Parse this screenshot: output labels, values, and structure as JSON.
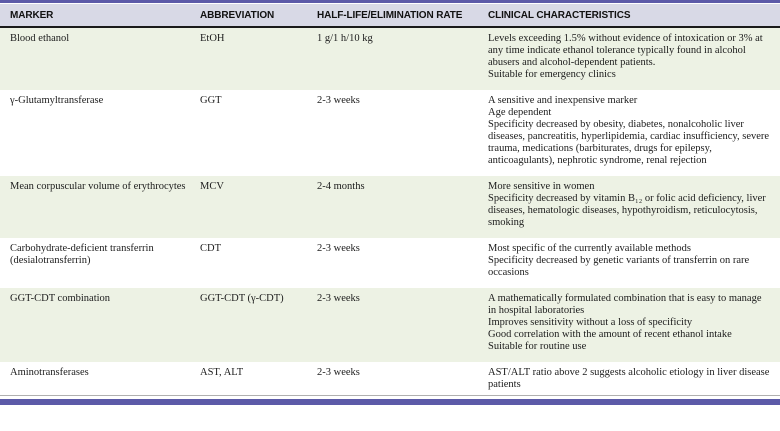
{
  "theme": {
    "accent_bar_color": "#5c5aa8",
    "header_bg": "#d8d9e6",
    "stripe_bg": "#edf2e4",
    "header_rule_color": "#1a1a1a",
    "text_color": "#1c1c1c"
  },
  "table": {
    "columns": [
      "MARKER",
      "ABBREVIATION",
      "HALF-LIFE/ELIMINATION RATE",
      "CLINICAL CHARACTERISTICS"
    ],
    "rows": [
      {
        "marker": "Blood ethanol",
        "abbreviation": "EtOH",
        "half_life": "1 g/1 h/10 kg",
        "characteristics": [
          "Levels exceeding 1.5% without evidence of intoxication or 3% at any time indicate ethanol tolerance typically found in alcohol abusers and alcohol-dependent patients.",
          "Suitable for emergency clinics"
        ]
      },
      {
        "marker": "γ-Glutamyltransferase",
        "abbreviation": "GGT",
        "half_life": "2-3 weeks",
        "characteristics": [
          "A sensitive and inexpensive marker",
          "Age dependent",
          "Specificity decreased by obesity, diabetes, nonalcoholic liver diseases, pancreatitis, hyperlipidemia, cardiac insufficiency, severe trauma, medications (barbiturates, drugs for epilepsy, anticoagulants), nephrotic syndrome, renal rejection"
        ]
      },
      {
        "marker": "Mean corpuscular volume of erythrocytes",
        "abbreviation": "MCV",
        "half_life": "2-4 months",
        "characteristics": [
          "More sensitive in women",
          "Specificity decreased by vitamin B₁₂ or folic acid deficiency, liver diseases, hematologic diseases, hypothyroidism, reticulocytosis, smoking"
        ]
      },
      {
        "marker": "Carbohydrate-deficient transferrin (desialotransferrin)",
        "abbreviation": "CDT",
        "half_life": "2-3 weeks",
        "characteristics": [
          "Most specific of the currently available methods",
          "Specificity decreased by genetic variants of transferrin on rare occasions"
        ]
      },
      {
        "marker": "GGT-CDT combination",
        "abbreviation": "GGT-CDT (γ-CDT)",
        "half_life": "2-3 weeks",
        "characteristics": [
          "A mathematically formulated combination that is easy to manage in hospital laboratories",
          "Improves sensitivity without a loss of specificity",
          "Good correlation with the amount of recent ethanol intake",
          "Suitable for routine use"
        ]
      },
      {
        "marker": "Aminotransferases",
        "abbreviation": "AST, ALT",
        "half_life": "2-3 weeks",
        "characteristics": [
          "AST/ALT ratio above 2 suggests alcoholic etiology in liver disease patients"
        ]
      }
    ]
  }
}
